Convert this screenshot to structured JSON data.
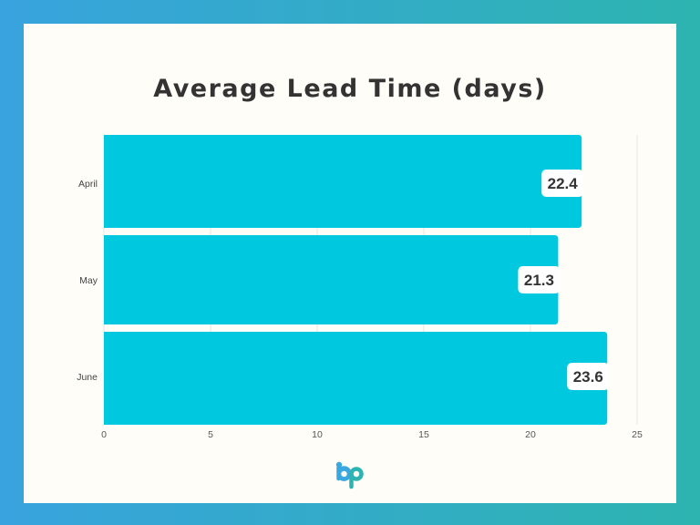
{
  "chart_data": {
    "type": "bar",
    "orientation": "horizontal",
    "title": "Average Lead Time (days)",
    "categories": [
      "April",
      "May",
      "June"
    ],
    "values": [
      22.4,
      21.3,
      23.6
    ],
    "value_labels": [
      "22.4",
      "21.3",
      "23.6"
    ],
    "xlim": [
      0,
      25
    ],
    "xticks": [
      "0",
      "5",
      "10",
      "15",
      "20",
      "25"
    ],
    "xlabel": "",
    "ylabel": "",
    "grid": true,
    "legend": "none"
  },
  "colors": {
    "bar": "#00c9df",
    "grid": "#e6e6e6",
    "text": "#333333",
    "background": "#fffdf7"
  },
  "logo": {
    "icon": "bp-logo-icon",
    "text": "bp"
  }
}
